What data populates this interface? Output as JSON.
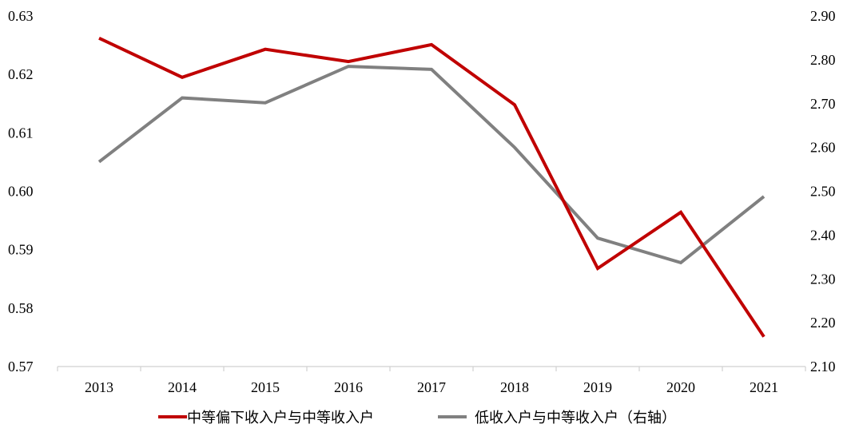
{
  "chart_data": {
    "type": "line",
    "categories": [
      "2013",
      "2014",
      "2015",
      "2016",
      "2017",
      "2018",
      "2019",
      "2020",
      "2021"
    ],
    "series": [
      {
        "name": "中等偏下收入户与中等收入户",
        "axis": "left",
        "color": "#c00000",
        "values": [
          0.6262,
          0.6195,
          0.6243,
          0.6222,
          0.6251,
          0.6148,
          0.5868,
          0.5964,
          0.5751
        ]
      },
      {
        "name": "低收入户与中等收入户（右轴）",
        "axis": "right",
        "color": "#808080",
        "values": [
          2.567,
          2.713,
          2.702,
          2.785,
          2.778,
          2.6,
          2.393,
          2.337,
          2.488
        ]
      }
    ],
    "left_axis": {
      "ylim": [
        0.57,
        0.63
      ],
      "ticks": [
        "0.57",
        "0.58",
        "0.59",
        "0.60",
        "0.61",
        "0.62",
        "0.63"
      ]
    },
    "right_axis": {
      "ylim": [
        2.1,
        2.9
      ],
      "ticks": [
        "2.10",
        "2.20",
        "2.30",
        "2.40",
        "2.50",
        "2.60",
        "2.70",
        "2.80",
        "2.90"
      ]
    },
    "grid": false,
    "legend_position": "bottom"
  }
}
